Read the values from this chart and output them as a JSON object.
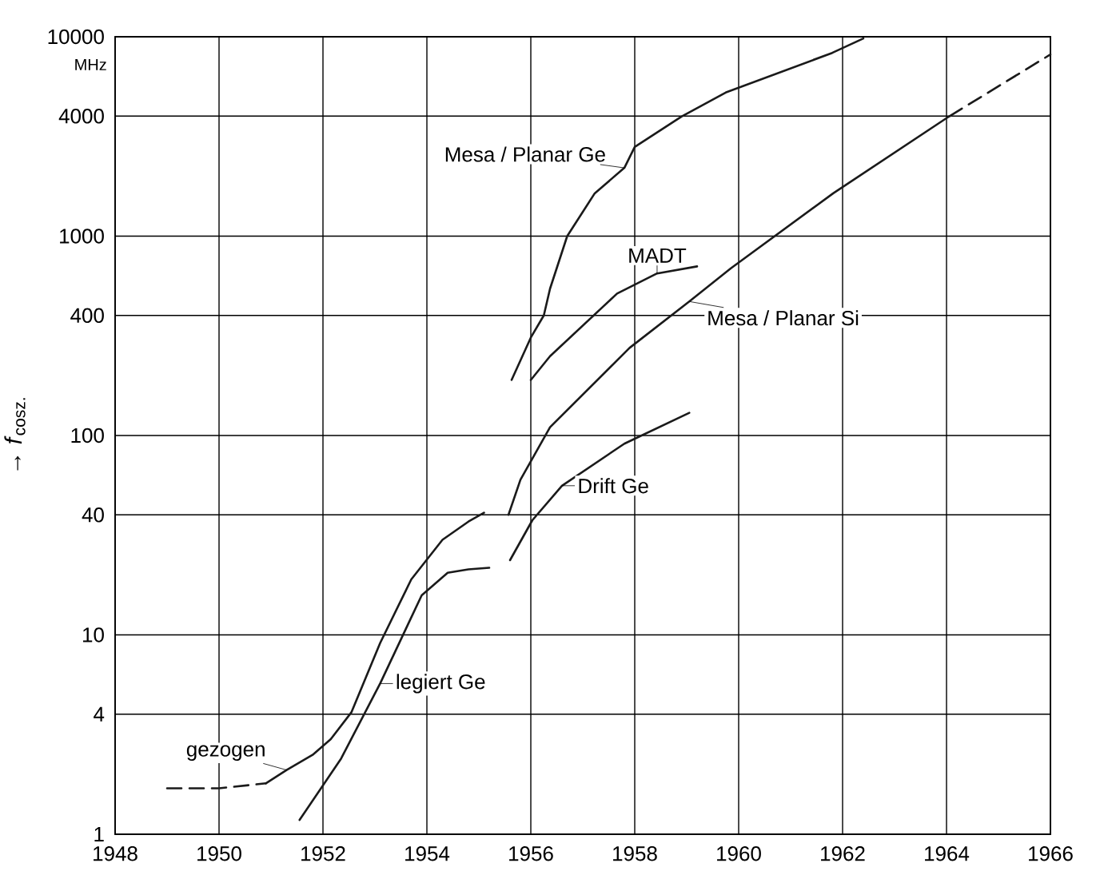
{
  "chart_data": {
    "type": "line",
    "ylabel": "→ *f*$_{cosz.}$",
    "annotations": [
      "MHz"
    ],
    "log": "y",
    "grid": true,
    "xlim": [
      1948,
      1966
    ],
    "ylim": [
      1,
      10000
    ],
    "xticks": [
      1948,
      1950,
      1952,
      1954,
      1956,
      1958,
      1960,
      1962,
      1964,
      1966
    ],
    "yticks": [
      1,
      4,
      10,
      40,
      100,
      400,
      1000,
      4000,
      10000
    ],
    "series": [
      {
        "color": "#1a1a1a",
        "line_style": "dashed",
        "x": [
          1949.0,
          1950.0,
          1950.9
        ],
        "values": [
          1.7,
          1.7,
          1.8
        ]
      },
      {
        "name": "gezogen",
        "color": "#1a1a1a",
        "line_style": "solid",
        "x": [
          1950.9,
          1951.3,
          1951.8,
          1952.15,
          1952.55,
          1953.1,
          1953.7,
          1954.3,
          1954.8,
          1955.1
        ],
        "values": [
          1.8,
          2.1,
          2.5,
          3.0,
          4.1,
          9.1,
          19,
          30,
          37,
          41
        ]
      },
      {
        "name": "legiert Ge",
        "color": "#1a1a1a",
        "line_style": "solid",
        "x": [
          1951.55,
          1952.35,
          1953.1,
          1953.9,
          1954.4,
          1954.8,
          1955.2
        ],
        "values": [
          1.18,
          2.4,
          5.7,
          15.8,
          20.5,
          21.3,
          21.7
        ]
      },
      {
        "name": "Drift Ge",
        "color": "#1a1a1a",
        "line_style": "solid",
        "x": [
          1955.6,
          1956.03,
          1956.6,
          1957.8,
          1959.05
        ],
        "values": [
          23.7,
          37.6,
          56,
          91,
          130
        ]
      },
      {
        "name": "Mesa / Planar Si",
        "color": "#1a1a1a",
        "line_style": "solid",
        "x": [
          1955.57,
          1955.8,
          1956.37,
          1957.9,
          1959.05,
          1959.85,
          1961.82,
          1964.06
        ],
        "values": [
          40,
          60,
          110,
          275,
          470,
          690,
          1640,
          4000
        ]
      },
      {
        "color": "#1a1a1a",
        "line_style": "dashed",
        "x": [
          1964.06,
          1966
        ],
        "values": [
          4000,
          8150
        ]
      },
      {
        "name": "MADT",
        "color": "#1a1a1a",
        "line_style": "solid",
        "x": [
          1956.0,
          1956.37,
          1957.66,
          1958.43,
          1959.2
        ],
        "values": [
          190,
          250,
          515,
          650,
          705
        ]
      },
      {
        "name": "Mesa / Planar Ge",
        "color": "#1a1a1a",
        "line_style": "solid",
        "x": [
          1955.63,
          1956.0,
          1956.25,
          1956.37,
          1956.7,
          1957.23,
          1957.8,
          1958.0,
          1958.9,
          1959.75,
          1961.8,
          1962.4
        ],
        "values": [
          190,
          310,
          400,
          545,
          1000,
          1640,
          2200,
          2800,
          3980,
          5250,
          8300,
          9800
        ]
      }
    ]
  }
}
